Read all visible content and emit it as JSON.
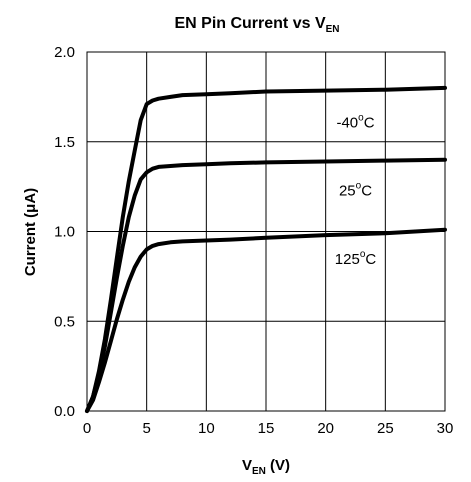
{
  "chart_data": {
    "type": "line",
    "title": {
      "main": "EN Pin Current vs V",
      "sub": "EN"
    },
    "xlabel": {
      "main": "V",
      "sub": "EN",
      "rest": " (V)"
    },
    "ylabel": {
      "pre": "Current (",
      "mu": "μ",
      "post": "A)"
    },
    "xlim": [
      0,
      30
    ],
    "ylim": [
      0,
      2.0
    ],
    "x_ticks": [
      "0",
      "5",
      "10",
      "15",
      "20",
      "25",
      "30"
    ],
    "y_ticks": [
      "0.0",
      "0.5",
      "1.0",
      "1.5",
      "2.0"
    ],
    "grid": true,
    "series": [
      {
        "name": "-40",
        "unit_sup": "o",
        "unit": "C",
        "x": [
          0,
          0.5,
          1,
          1.5,
          2,
          2.5,
          3,
          3.5,
          4,
          4.5,
          5,
          5.5,
          6,
          7,
          8,
          10,
          12,
          15,
          20,
          25,
          30
        ],
        "y": [
          0,
          0.08,
          0.22,
          0.4,
          0.62,
          0.85,
          1.08,
          1.28,
          1.45,
          1.62,
          1.71,
          1.73,
          1.74,
          1.75,
          1.76,
          1.765,
          1.77,
          1.78,
          1.785,
          1.79,
          1.8
        ]
      },
      {
        "name": "25",
        "unit_sup": "o",
        "unit": "C",
        "x": [
          0,
          0.5,
          1,
          1.5,
          2,
          2.5,
          3,
          3.5,
          4,
          4.5,
          5,
          5.5,
          6,
          7,
          8,
          10,
          12,
          15,
          20,
          25,
          30
        ],
        "y": [
          0,
          0.08,
          0.2,
          0.36,
          0.55,
          0.74,
          0.92,
          1.08,
          1.2,
          1.29,
          1.33,
          1.35,
          1.36,
          1.365,
          1.37,
          1.375,
          1.38,
          1.385,
          1.39,
          1.395,
          1.4
        ]
      },
      {
        "name": "125",
        "unit_sup": "o",
        "unit": "C",
        "x": [
          0,
          0.5,
          1,
          1.5,
          2,
          2.5,
          3,
          3.5,
          4,
          4.5,
          5,
          5.5,
          6,
          7,
          8,
          10,
          12,
          15,
          20,
          25,
          30
        ],
        "y": [
          0,
          0.06,
          0.16,
          0.27,
          0.39,
          0.51,
          0.62,
          0.72,
          0.8,
          0.86,
          0.9,
          0.92,
          0.93,
          0.94,
          0.945,
          0.95,
          0.955,
          0.965,
          0.98,
          0.99,
          1.01
        ]
      }
    ],
    "label_positions": [
      {
        "x": 22.5,
        "y": 1.58
      },
      {
        "x": 22.5,
        "y": 1.2
      },
      {
        "x": 22.5,
        "y": 0.82
      }
    ]
  }
}
